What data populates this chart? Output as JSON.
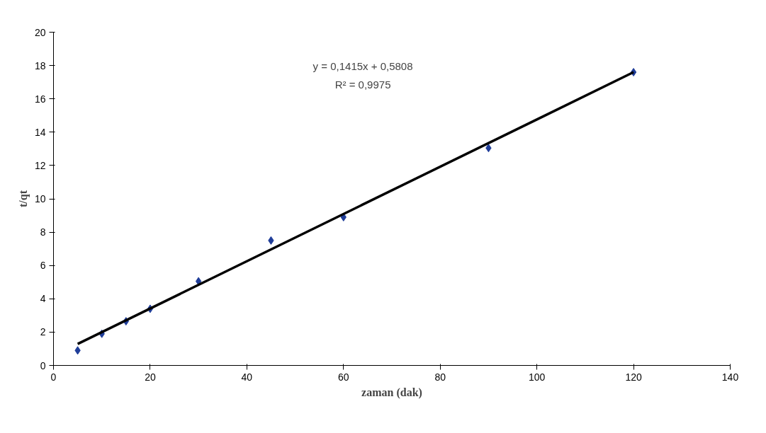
{
  "chart_data": {
    "type": "scatter",
    "xlabel": "zaman (dak)",
    "ylabel": "t/qt",
    "xlim": [
      0,
      140
    ],
    "xticks": [
      0,
      20,
      40,
      60,
      80,
      100,
      120,
      140
    ],
    "ylim": [
      0,
      20
    ],
    "yticks": [
      0,
      2,
      4,
      6,
      8,
      10,
      12,
      14,
      16,
      18,
      20
    ],
    "grid": false,
    "annotations": [
      "y = 0,1415x + 0,5808",
      "R² = 0,9975"
    ],
    "series": [
      {
        "type": "scatter",
        "marker": "diamond",
        "color": "#1f3d99",
        "x": [
          5,
          10,
          15,
          20,
          30,
          45,
          60,
          90,
          120
        ],
        "values": [
          0.9,
          1.9,
          2.65,
          3.4,
          5.05,
          7.5,
          8.9,
          13.05,
          17.6
        ]
      },
      {
        "type": "line",
        "line_style": "solid",
        "color": "#000000",
        "x": [
          5,
          120
        ],
        "values": [
          1.29,
          17.6
        ]
      }
    ]
  }
}
